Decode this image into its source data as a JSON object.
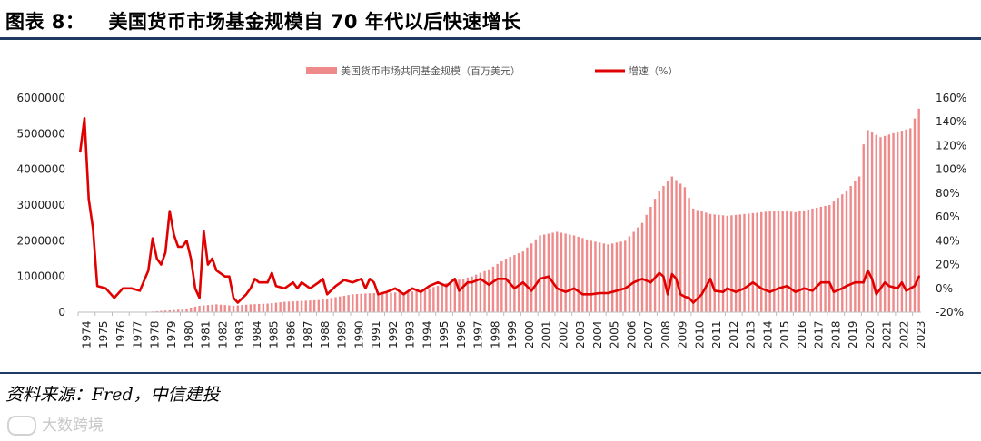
{
  "header": {
    "figure_number": "图表 8：",
    "title": "美国货币市场基金规模自 70 年代以后快速增长"
  },
  "footer": {
    "source": "资料来源：Fred，中信建投",
    "watermark": "大数跨境"
  },
  "colors": {
    "bars": "#ef8a8a",
    "line": "#e00000",
    "rule": "#1f3b63"
  },
  "chart_data": {
    "type": "bar+line",
    "title": "美国货币市场基金规模自 70 年代以后快速增长",
    "legend": [
      "美国货币市场共同基金规模（百万美元）",
      "增速（%）"
    ],
    "legend_position": "top-center",
    "x_start": "1974-Q1",
    "x_end": "2023-Q2",
    "x_tick_labels": [
      "1974",
      "1975",
      "1976",
      "1977",
      "1978",
      "1979",
      "1980",
      "1981",
      "1982",
      "1983",
      "1984",
      "1985",
      "1986",
      "1987",
      "1988",
      "1989",
      "1990",
      "1991",
      "1992",
      "1993",
      "1994",
      "1995",
      "1996",
      "1997",
      "1998",
      "1999",
      "2000",
      "2001",
      "2002",
      "2003",
      "2004",
      "2005",
      "2006",
      "2007",
      "2008",
      "2009",
      "2010",
      "2011",
      "2012",
      "2013",
      "2014",
      "2015",
      "2016",
      "2017",
      "2018",
      "2019",
      "2020",
      "2021",
      "2022",
      "2023"
    ],
    "y_left": {
      "label": "",
      "ylim": [
        0,
        6000000
      ],
      "ticks": [
        "0",
        "1000000",
        "2000000",
        "3000000",
        "4000000",
        "5000000",
        "6000000"
      ]
    },
    "y_right": {
      "label": "",
      "ylim": [
        -20,
        160
      ],
      "ticks": [
        "-20%",
        "0%",
        "20%",
        "40%",
        "60%",
        "80%",
        "100%",
        "120%",
        "140%",
        "160%"
      ]
    },
    "bar_series": {
      "name": "美国货币市场共同基金规模（百万美元）",
      "axis": "left",
      "anchors": [
        [
          1974.0,
          2000
        ],
        [
          1975.0,
          4000
        ],
        [
          1976.0,
          4000
        ],
        [
          1977.0,
          4500
        ],
        [
          1978.0,
          10000
        ],
        [
          1979.0,
          45000
        ],
        [
          1980.0,
          75000
        ],
        [
          1981.0,
          180000
        ],
        [
          1982.0,
          220000
        ],
        [
          1983.0,
          180000
        ],
        [
          1984.0,
          220000
        ],
        [
          1985.0,
          240000
        ],
        [
          1986.0,
          290000
        ],
        [
          1987.0,
          315000
        ],
        [
          1988.0,
          340000
        ],
        [
          1989.0,
          420000
        ],
        [
          1990.0,
          500000
        ],
        [
          1991.0,
          530000
        ],
        [
          1992.0,
          540000
        ],
        [
          1993.0,
          560000
        ],
        [
          1994.0,
          600000
        ],
        [
          1995.0,
          740000
        ],
        [
          1996.0,
          880000
        ],
        [
          1997.0,
          1000000
        ],
        [
          1998.0,
          1200000
        ],
        [
          1999.0,
          1500000
        ],
        [
          2000.0,
          1700000
        ],
        [
          2001.0,
          2150000
        ],
        [
          2002.0,
          2250000
        ],
        [
          2003.0,
          2150000
        ],
        [
          2004.0,
          2000000
        ],
        [
          2005.0,
          1900000
        ],
        [
          2006.0,
          2000000
        ],
        [
          2007.0,
          2500000
        ],
        [
          2008.0,
          3400000
        ],
        [
          2008.75,
          3800000
        ],
        [
          2009.5,
          3500000
        ],
        [
          2010.0,
          2900000
        ],
        [
          2011.0,
          2750000
        ],
        [
          2012.0,
          2700000
        ],
        [
          2013.0,
          2750000
        ],
        [
          2014.0,
          2800000
        ],
        [
          2015.0,
          2850000
        ],
        [
          2016.0,
          2800000
        ],
        [
          2017.0,
          2900000
        ],
        [
          2018.0,
          3000000
        ],
        [
          2019.0,
          3400000
        ],
        [
          2019.75,
          3800000
        ],
        [
          2020.0,
          4700000
        ],
        [
          2020.25,
          5100000
        ],
        [
          2021.0,
          4900000
        ],
        [
          2022.0,
          5050000
        ],
        [
          2022.75,
          5150000
        ],
        [
          2023.25,
          5700000
        ]
      ]
    },
    "line_series": {
      "name": "增速（%）",
      "axis": "right",
      "points": [
        [
          1974.0,
          115
        ],
        [
          1974.25,
          143
        ],
        [
          1974.5,
          75
        ],
        [
          1974.75,
          50
        ],
        [
          1975.0,
          2
        ],
        [
          1975.5,
          0
        ],
        [
          1976.0,
          -8
        ],
        [
          1976.5,
          0
        ],
        [
          1977.0,
          0
        ],
        [
          1977.5,
          -2
        ],
        [
          1978.0,
          15
        ],
        [
          1978.25,
          42
        ],
        [
          1978.5,
          25
        ],
        [
          1978.75,
          20
        ],
        [
          1979.0,
          30
        ],
        [
          1979.25,
          65
        ],
        [
          1979.5,
          45
        ],
        [
          1979.75,
          35
        ],
        [
          1980.0,
          35
        ],
        [
          1980.25,
          40
        ],
        [
          1980.5,
          25
        ],
        [
          1980.75,
          0
        ],
        [
          1981.0,
          -8
        ],
        [
          1981.25,
          48
        ],
        [
          1981.5,
          20
        ],
        [
          1981.75,
          25
        ],
        [
          1982.0,
          15
        ],
        [
          1982.5,
          10
        ],
        [
          1982.75,
          10
        ],
        [
          1983.0,
          -8
        ],
        [
          1983.25,
          -12
        ],
        [
          1983.75,
          -5
        ],
        [
          1984.0,
          0
        ],
        [
          1984.25,
          8
        ],
        [
          1984.5,
          5
        ],
        [
          1985.0,
          5
        ],
        [
          1985.25,
          13
        ],
        [
          1985.5,
          2
        ],
        [
          1986.0,
          0
        ],
        [
          1986.5,
          5
        ],
        [
          1986.75,
          0
        ],
        [
          1987.0,
          5
        ],
        [
          1987.5,
          0
        ],
        [
          1988.0,
          5
        ],
        [
          1988.25,
          8
        ],
        [
          1988.5,
          -5
        ],
        [
          1989.0,
          2
        ],
        [
          1989.5,
          7
        ],
        [
          1990.0,
          5
        ],
        [
          1990.5,
          8
        ],
        [
          1990.75,
          0
        ],
        [
          1991.0,
          8
        ],
        [
          1991.25,
          5
        ],
        [
          1991.5,
          -5
        ],
        [
          1992.0,
          -3
        ],
        [
          1992.5,
          0
        ],
        [
          1993.0,
          -5
        ],
        [
          1993.5,
          0
        ],
        [
          1994.0,
          -3
        ],
        [
          1994.5,
          2
        ],
        [
          1995.0,
          5
        ],
        [
          1995.5,
          2
        ],
        [
          1996.0,
          8
        ],
        [
          1996.25,
          -2
        ],
        [
          1996.75,
          5
        ],
        [
          1997.0,
          5
        ],
        [
          1997.5,
          8
        ],
        [
          1998.0,
          3
        ],
        [
          1998.5,
          8
        ],
        [
          1999.0,
          8
        ],
        [
          1999.5,
          0
        ],
        [
          2000.0,
          5
        ],
        [
          2000.5,
          -2
        ],
        [
          2001.0,
          8
        ],
        [
          2001.5,
          10
        ],
        [
          2002.0,
          0
        ],
        [
          2002.5,
          -3
        ],
        [
          2003.0,
          0
        ],
        [
          2003.5,
          -5
        ],
        [
          2004.0,
          -5
        ],
        [
          2004.5,
          -4
        ],
        [
          2005.0,
          -4
        ],
        [
          2005.5,
          -2
        ],
        [
          2006.0,
          0
        ],
        [
          2006.5,
          5
        ],
        [
          2007.0,
          8
        ],
        [
          2007.5,
          5
        ],
        [
          2008.0,
          13
        ],
        [
          2008.25,
          10
        ],
        [
          2008.5,
          -5
        ],
        [
          2008.75,
          12
        ],
        [
          2009.0,
          8
        ],
        [
          2009.25,
          -5
        ],
        [
          2009.5,
          -7
        ],
        [
          2009.75,
          -8
        ],
        [
          2010.0,
          -12
        ],
        [
          2010.5,
          -5
        ],
        [
          2011.0,
          8
        ],
        [
          2011.25,
          -2
        ],
        [
          2011.75,
          -3
        ],
        [
          2012.0,
          0
        ],
        [
          2012.5,
          -3
        ],
        [
          2013.0,
          0
        ],
        [
          2013.5,
          5
        ],
        [
          2014.0,
          0
        ],
        [
          2014.5,
          -3
        ],
        [
          2015.0,
          0
        ],
        [
          2015.5,
          2
        ],
        [
          2016.0,
          -3
        ],
        [
          2016.5,
          0
        ],
        [
          2017.0,
          -2
        ],
        [
          2017.5,
          5
        ],
        [
          2018.0,
          5
        ],
        [
          2018.25,
          -3
        ],
        [
          2018.75,
          0
        ],
        [
          2019.0,
          2
        ],
        [
          2019.5,
          5
        ],
        [
          2020.0,
          5
        ],
        [
          2020.25,
          15
        ],
        [
          2020.5,
          8
        ],
        [
          2020.75,
          -5
        ],
        [
          2021.0,
          0
        ],
        [
          2021.25,
          5
        ],
        [
          2021.5,
          2
        ],
        [
          2022.0,
          0
        ],
        [
          2022.25,
          5
        ],
        [
          2022.5,
          -2
        ],
        [
          2023.0,
          2
        ],
        [
          2023.25,
          10
        ]
      ]
    }
  }
}
